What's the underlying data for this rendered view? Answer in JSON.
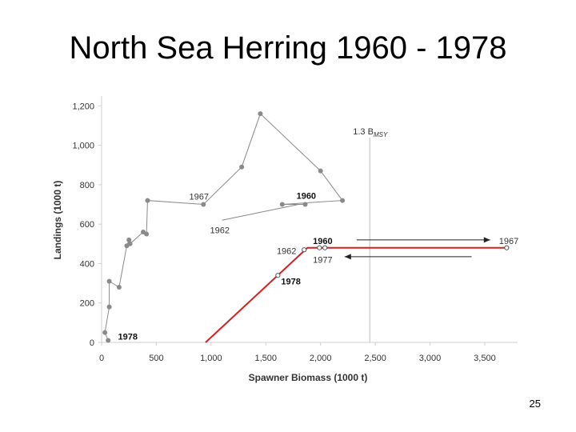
{
  "slide": {
    "title": "North Sea Herring 1960 - 1978",
    "page_number": "25"
  },
  "chart_data": {
    "type": "scatter",
    "xlabel": "Spawner Biomass (1000 t)",
    "ylabel": "Landings (1000 t)",
    "xlim": [
      0,
      3800
    ],
    "ylim": [
      0,
      1250
    ],
    "x_ticks": [
      0,
      500,
      1000,
      1500,
      2000,
      2500,
      3000,
      3500
    ],
    "x_tick_labels": [
      "0",
      "500",
      "1,000",
      "1,500",
      "2,000",
      "2,500",
      "3,000",
      "3,500"
    ],
    "y_ticks": [
      0,
      200,
      400,
      600,
      800,
      1000,
      1200
    ],
    "y_tick_labels": [
      "0",
      "200",
      "400",
      "600",
      "800",
      "1,000",
      "1,200"
    ],
    "grid": false,
    "series": [
      {
        "color": "#8a8a8a",
        "style": "line-markers",
        "points": [
          {
            "x": 1860,
            "y": 700
          },
          {
            "x": 1650,
            "y": 700
          },
          {
            "x": 2200,
            "y": 720
          },
          {
            "x": 2000,
            "y": 870
          },
          {
            "x": 1450,
            "y": 1160
          },
          {
            "x": 1280,
            "y": 890
          },
          {
            "x": 930,
            "y": 700
          },
          {
            "x": 420,
            "y": 720
          },
          {
            "x": 410,
            "y": 550
          },
          {
            "x": 380,
            "y": 560
          },
          {
            "x": 260,
            "y": 500
          },
          {
            "x": 250,
            "y": 520
          },
          {
            "x": 230,
            "y": 490
          },
          {
            "x": 160,
            "y": 280
          },
          {
            "x": 70,
            "y": 310
          },
          {
            "x": 70,
            "y": 180
          },
          {
            "x": 30,
            "y": 50
          },
          {
            "x": 60,
            "y": 10
          }
        ]
      },
      {
        "color": "#8a8a8a",
        "style": "line",
        "points": [
          {
            "x": 1100,
            "y": 620
          },
          {
            "x": 1800,
            "y": 700
          }
        ]
      },
      {
        "color": "#d42020",
        "style": "line",
        "points": [
          {
            "x": 950,
            "y": 0
          },
          {
            "x": 1880,
            "y": 480
          },
          {
            "x": 3700,
            "y": 480
          }
        ]
      },
      {
        "color": "#d42020",
        "style": "open-markers",
        "points": [
          {
            "x": 1610,
            "y": 340
          },
          {
            "x": 1850,
            "y": 470
          },
          {
            "x": 1990,
            "y": 480
          },
          {
            "x": 2040,
            "y": 480
          },
          {
            "x": 3700,
            "y": 480
          }
        ]
      }
    ],
    "reference_line": {
      "x": 2450,
      "label": "1.3 B",
      "label_sub": "MSY"
    },
    "arrows": [
      {
        "from": {
          "x": 2330,
          "y": 520
        },
        "to": {
          "x": 3550,
          "y": 520
        },
        "direction": "right"
      },
      {
        "from": {
          "x": 3380,
          "y": 435
        },
        "to": {
          "x": 2220,
          "y": 435
        },
        "direction": "left"
      }
    ],
    "annotations": [
      {
        "text": "1967",
        "x": 800,
        "y": 740,
        "bold": false
      },
      {
        "text": "1960",
        "x": 1780,
        "y": 745,
        "bold": true
      },
      {
        "text": "1962",
        "x": 990,
        "y": 570,
        "bold": false
      },
      {
        "text": "1962",
        "x": 1600,
        "y": 465,
        "bold": false
      },
      {
        "text": "1960",
        "x": 1930,
        "y": 515,
        "bold": true
      },
      {
        "text": "1977",
        "x": 1930,
        "y": 420,
        "bold": false
      },
      {
        "text": "1978",
        "x": 1640,
        "y": 310,
        "bold": true
      },
      {
        "text": "1967",
        "x": 3630,
        "y": 515,
        "bold": false
      },
      {
        "text": "1978",
        "x": 150,
        "y": 30,
        "bold": true
      }
    ]
  }
}
